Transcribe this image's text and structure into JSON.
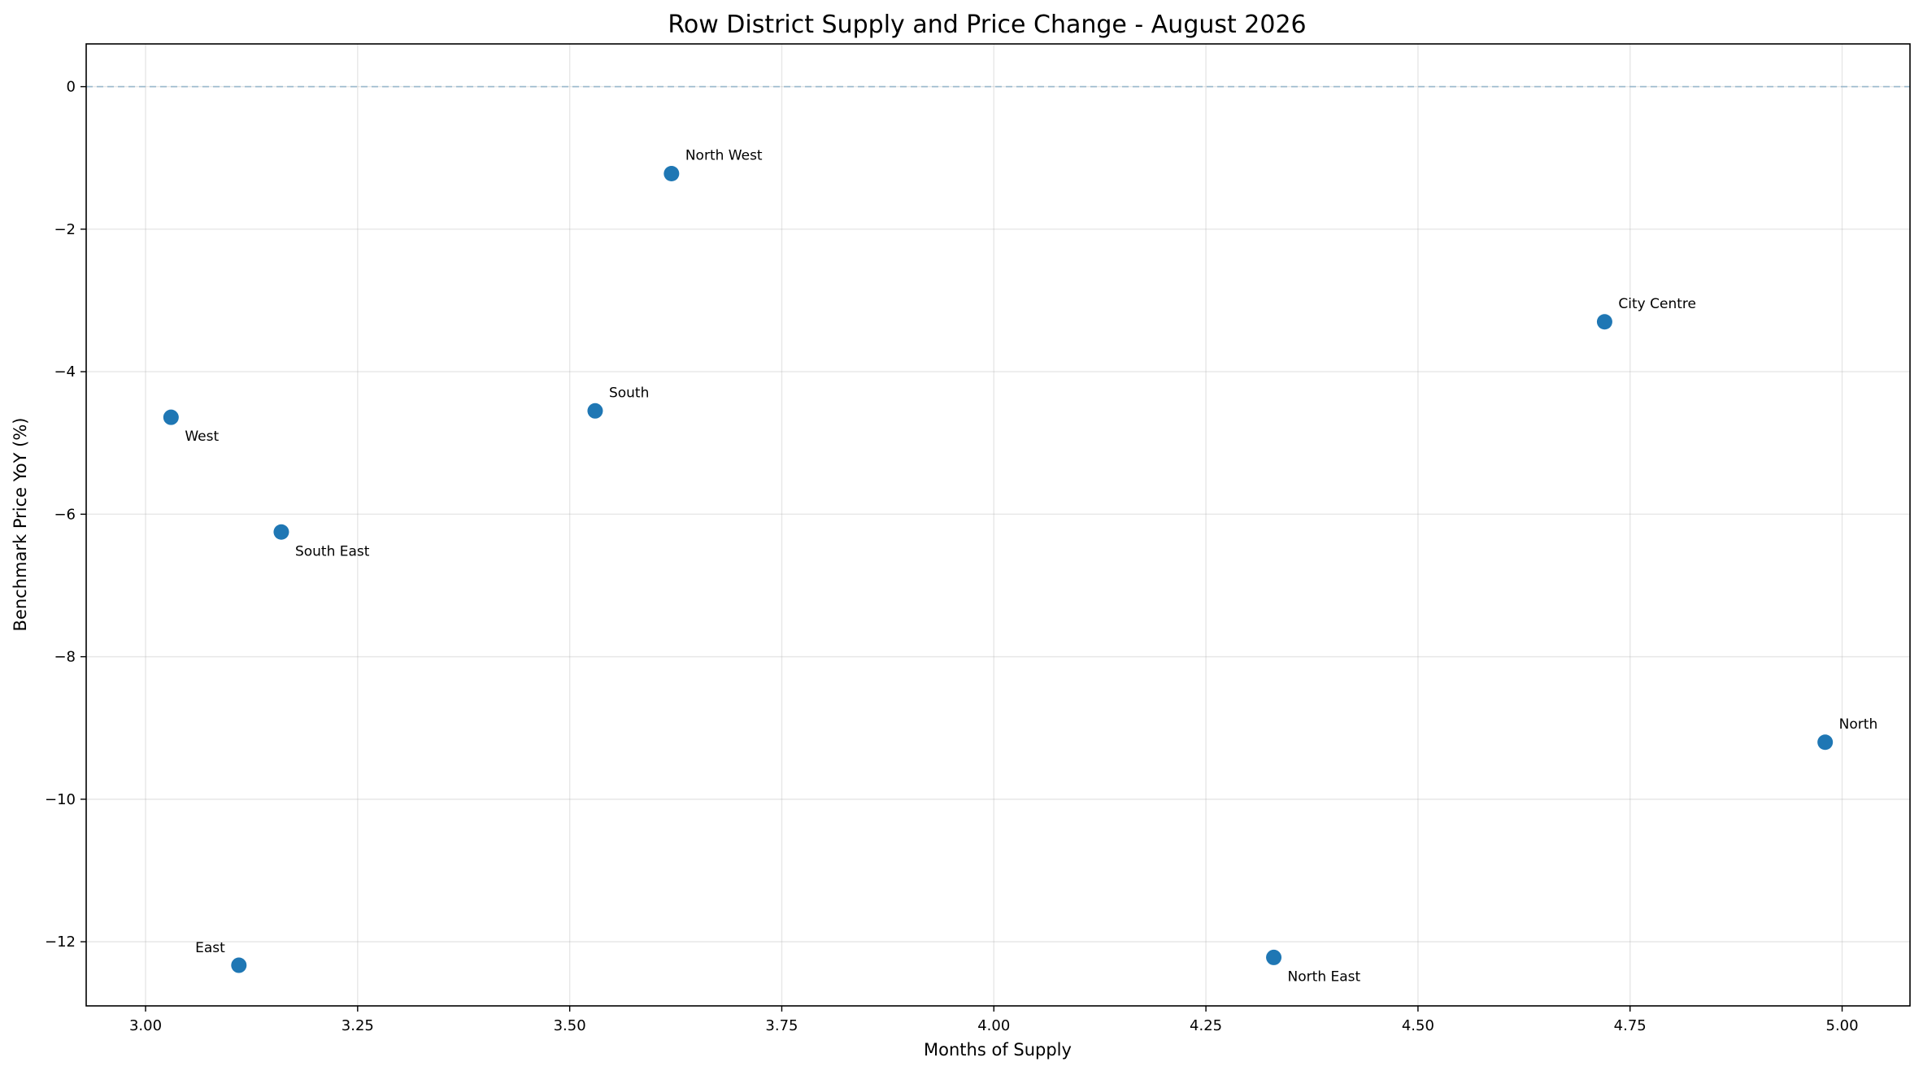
{
  "colors": {
    "marker": "#1f77b4",
    "reference_line": "#9ab8cc"
  },
  "chart_data": {
    "type": "scatter",
    "title": "Row District Supply and Price Change - August 2026",
    "xlabel": "Months of Supply",
    "ylabel": "Benchmark Price YoY (%)",
    "xlim": [
      2.93,
      5.08
    ],
    "ylim": [
      -12.9,
      0.6
    ],
    "x_ticks": [
      3.0,
      3.25,
      3.5,
      3.75,
      4.0,
      4.25,
      4.5,
      4.75,
      5.0
    ],
    "x_tick_labels": [
      "3.00",
      "3.25",
      "3.50",
      "3.75",
      "4.00",
      "4.25",
      "4.50",
      "4.75",
      "5.00"
    ],
    "y_ticks": [
      0,
      -2,
      -4,
      -6,
      -8,
      -10,
      -12
    ],
    "y_tick_labels": [
      "0",
      "−2",
      "−4",
      "−6",
      "−8",
      "−10",
      "−12"
    ],
    "grid": true,
    "reference_line": {
      "y": 0,
      "style": "dashed"
    },
    "points": [
      {
        "label": "North West",
        "x": 3.62,
        "y": -1.22,
        "label_side": "above-right"
      },
      {
        "label": "City Centre",
        "x": 4.72,
        "y": -3.3,
        "label_side": "above-right"
      },
      {
        "label": "South",
        "x": 3.53,
        "y": -4.55,
        "label_side": "above-right"
      },
      {
        "label": "West",
        "x": 3.03,
        "y": -4.64,
        "label_side": "below-right"
      },
      {
        "label": "South East",
        "x": 3.16,
        "y": -6.25,
        "label_side": "below-right"
      },
      {
        "label": "North",
        "x": 4.98,
        "y": -9.2,
        "label_side": "above-right"
      },
      {
        "label": "North East",
        "x": 4.33,
        "y": -12.22,
        "label_side": "below-right"
      },
      {
        "label": "East",
        "x": 3.11,
        "y": -12.33,
        "label_side": "above-left"
      }
    ]
  }
}
